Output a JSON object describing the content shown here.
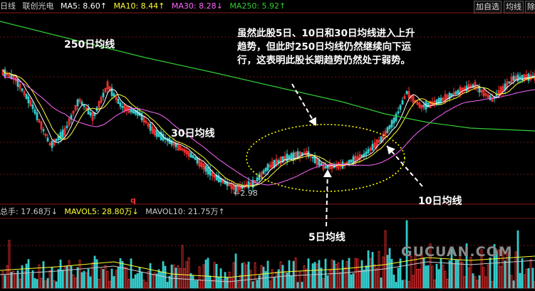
{
  "header": {
    "period": "日线",
    "stock_name": "联创光电",
    "ma5": "MA5: 8.60↑",
    "ma10": "MA10: 8.44↑",
    "ma30": "MA30: 8.28↓",
    "ma250": "MA250: 5.92↑",
    "btn_add": "加自选",
    "btn_ma": "均线",
    "btn_remove": "除"
  },
  "annotations": {
    "ma250_label": "250日均线",
    "ma30_label": "30日均线",
    "ma5_label": "5日均线",
    "ma10_label": "10日均线",
    "note": "虽然此股5日、10日和30日均线进入上升趋势，但此时250日均线仍然继续向下运行，这表明此股长期趋势仍然处于弱势。",
    "low_label": "←2.98",
    "q_mark": "q"
  },
  "volume_header": {
    "total": "总手: 17.68万↓",
    "mavol5": "MAVOL5: 28.80万↓",
    "mavol10": "MAVOL10: 21.75万↑"
  },
  "watermark": "GUCUAN.COM",
  "colors": {
    "up": "#ff3333",
    "down": "#33cccc",
    "ma5": "#ffffff",
    "ma10": "#ffff33",
    "ma30": "#ff66ff",
    "ma250": "#33cc33",
    "dotted_ellipse": "#ffff00"
  }
}
